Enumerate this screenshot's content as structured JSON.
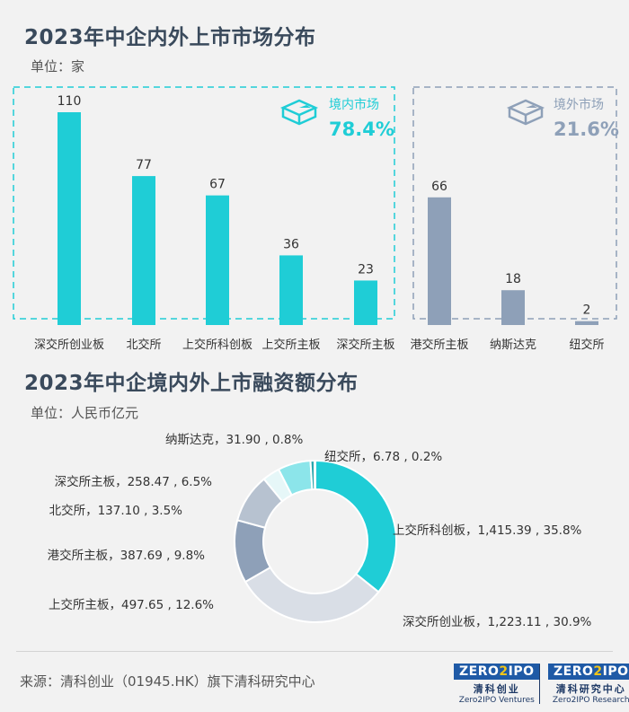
{
  "chart1": {
    "title": "2023年中企内外上市市场分布",
    "unit": "单位：家",
    "domestic": {
      "label": "境内市场",
      "pct": "78.4%",
      "color": "#1fcdd6"
    },
    "overseas": {
      "label": "境外市场",
      "pct": "21.6%",
      "color": "#8ea0b8"
    },
    "icon_names": [
      "pie-cube-icon-domestic",
      "pie-cube-icon-overseas"
    ]
  },
  "chart2": {
    "title": "2023年中企境内外上市融资额分布",
    "unit": "单位：人民币亿元"
  },
  "chart_data": [
    {
      "type": "bar",
      "categories": [
        "深交所创业板",
        "北交所",
        "上交所科创板",
        "上交所主板",
        "深交所主板",
        "港交所主板",
        "纳斯达克",
        "纽交所"
      ],
      "values": [
        110,
        77,
        67,
        36,
        23,
        66,
        18,
        2
      ],
      "groups": [
        "境内市场",
        "境内市场",
        "境内市场",
        "境内市场",
        "境内市场",
        "境外市场",
        "境外市场",
        "境外市场"
      ],
      "ylim": [
        0,
        110
      ]
    },
    {
      "type": "pie",
      "donut": true,
      "slices": [
        {
          "label": "上交所科创板",
          "value": 1415.39,
          "value_text": "1,415.39",
          "pct": "35.8%",
          "color": "#1fcdd6"
        },
        {
          "label": "深交所创业板",
          "value": 1223.11,
          "value_text": "1,223.11",
          "pct": "30.9%",
          "color": "#d9dee6"
        },
        {
          "label": "上交所主板",
          "value": 497.65,
          "value_text": "497.65",
          "pct": "12.6%",
          "color": "#8ea0b8"
        },
        {
          "label": "港交所主板",
          "value": 387.69,
          "value_text": "387.69",
          "pct": "9.8%",
          "color": "#b7c2d0"
        },
        {
          "label": "北交所",
          "value": 137.1,
          "value_text": "137.10",
          "pct": "3.5%",
          "color": "#e6f7f8"
        },
        {
          "label": "深交所主板",
          "value": 258.47,
          "value_text": "258.47",
          "pct": "6.5%",
          "color": "#8ce5ea"
        },
        {
          "label": "纳斯达克",
          "value": 31.9,
          "value_text": "31.90",
          "pct": "0.8%",
          "color": "#2aa6ad"
        },
        {
          "label": "纽交所",
          "value": 6.78,
          "value_text": "6.78",
          "pct": "0.2%",
          "color": "#0e7f85"
        }
      ]
    }
  ],
  "footer": {
    "source": "来源：清科创业（01945.HK）旗下清科研究中心",
    "logo1_mark_a": "ZERO",
    "logo1_mark_b": "2",
    "logo1_mark_c": "IPO",
    "logo1_cn": "清科创业",
    "logo1_en": "Zero2IPO Ventures",
    "logo2_mark_a": "ZERO",
    "logo2_mark_b": "2",
    "logo2_mark_c": "IPO",
    "logo2_cn": "清科研究中心",
    "logo2_en": "Zero2IPO Research"
  }
}
